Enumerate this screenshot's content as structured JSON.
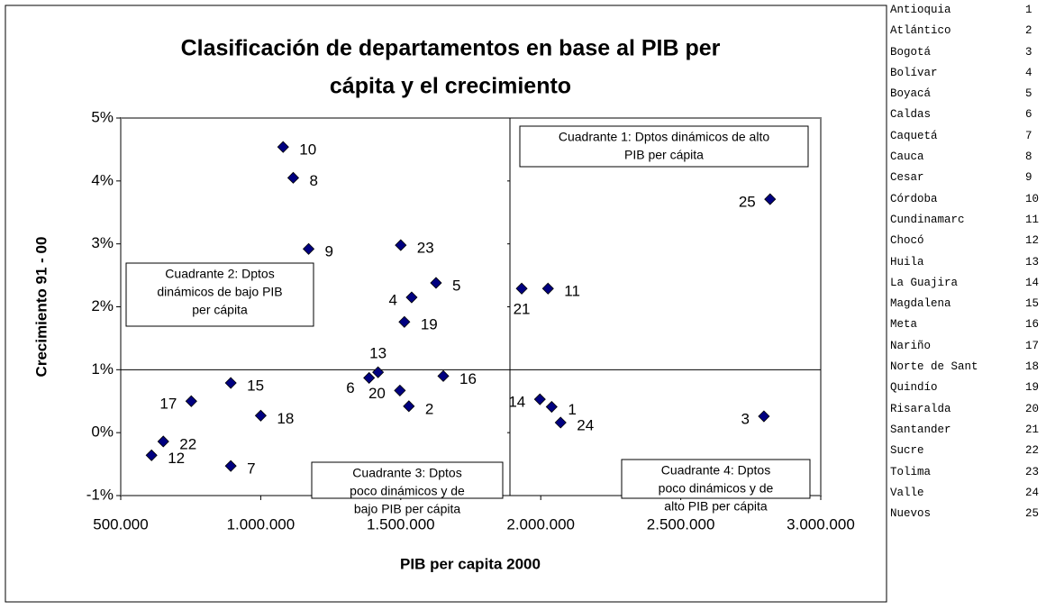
{
  "chart_data": {
    "type": "scatter",
    "title": [
      "Clasificación de departamentos en base al PIB per",
      "cápita y el crecimiento"
    ],
    "x_label": "PIB per capita 2000",
    "y_label": "Crecimiento 91 - 00",
    "xlim": [
      500000,
      3000000
    ],
    "xticks": [
      {
        "value": 500000,
        "label": "500.000"
      },
      {
        "value": 1000000,
        "label": "1.000.000"
      },
      {
        "value": 1500000,
        "label": "1.500.000"
      },
      {
        "value": 2000000,
        "label": "2.000.000"
      },
      {
        "value": 2500000,
        "label": "2.500.000"
      },
      {
        "value": 3000000,
        "label": "3.000.000"
      }
    ],
    "ylim": [
      -1,
      5
    ],
    "yticks": [
      {
        "value": -1,
        "label": "-1%"
      },
      {
        "value": 0,
        "label": "0%"
      },
      {
        "value": 1,
        "label": "1%"
      },
      {
        "value": 2,
        "label": "2%"
      },
      {
        "value": 3,
        "label": "3%"
      },
      {
        "value": 4,
        "label": "4%"
      },
      {
        "value": 5,
        "label": "5%"
      }
    ],
    "dividers": {
      "x": 1890000,
      "y": 1
    },
    "series": [
      {
        "color": "#000080",
        "x": [
          2039000,
          1529000,
          2797000,
          1539000,
          1626000,
          1387000,
          893000,
          1116000,
          1171000,
          1080000,
          2026000,
          610000,
          1419000,
          1997000,
          893000,
          1652000,
          752000,
          1000000,
          1513000,
          1497000,
          1932000,
          652000,
          1500000,
          2071000,
          2819000
        ],
        "values": [
          0.41,
          0.42,
          0.26,
          2.15,
          2.38,
          0.87,
          -0.53,
          4.05,
          2.92,
          4.54,
          2.29,
          -0.36,
          0.96,
          0.53,
          0.79,
          0.9,
          0.5,
          0.27,
          1.76,
          0.67,
          2.29,
          -0.14,
          2.98,
          0.16,
          3.71
        ],
        "labels": [
          "1",
          "2",
          "3",
          "4",
          "5",
          "6",
          "7",
          "8",
          "9",
          "10",
          "11",
          "12",
          "13",
          "14",
          "15",
          "16",
          "17",
          "18",
          "19",
          "20",
          "21",
          "22",
          "23",
          "24",
          "25"
        ]
      }
    ],
    "annotations": [
      {
        "lines": [
          "Cuadrante 1: Dptos dinámicos de alto",
          "PIB per cápita"
        ]
      },
      {
        "lines": [
          "Cuadrante 2: Dptos",
          "dinámicos de bajo PIB",
          "per cápita"
        ]
      },
      {
        "lines": [
          "Cuadrante 3: Dptos",
          "poco dinámicos y de",
          "bajo PIB per cápita"
        ]
      },
      {
        "lines": [
          "Cuadrante 4: Dptos",
          "poco dinámicos y de",
          "alto PIB per cápita"
        ]
      }
    ]
  },
  "table": {
    "rows": [
      [
        "Antioquia",
        "1"
      ],
      [
        "Atlántico",
        "2"
      ],
      [
        "Bogotá",
        "3"
      ],
      [
        "Bolívar",
        "4"
      ],
      [
        "Boyacá",
        "5"
      ],
      [
        "Caldas",
        "6"
      ],
      [
        "Caquetá",
        "7"
      ],
      [
        "Cauca",
        "8"
      ],
      [
        "Cesar",
        "9"
      ],
      [
        "Córdoba",
        "10"
      ],
      [
        "Cundinamarc",
        "11"
      ],
      [
        "Chocó",
        "12"
      ],
      [
        "Huila",
        "13"
      ],
      [
        "La Guajira",
        "14"
      ],
      [
        "Magdalena",
        "15"
      ],
      [
        "Meta",
        "16"
      ],
      [
        "Nariño",
        "17"
      ],
      [
        "Norte de Sant",
        "18"
      ],
      [
        "Quindío",
        "19"
      ],
      [
        "Risaralda",
        "20"
      ],
      [
        "Santander",
        "21"
      ],
      [
        "Sucre",
        "22"
      ],
      [
        "Tolima",
        "23"
      ],
      [
        "Valle",
        "24"
      ],
      [
        "Nuevos",
        "25"
      ]
    ]
  }
}
